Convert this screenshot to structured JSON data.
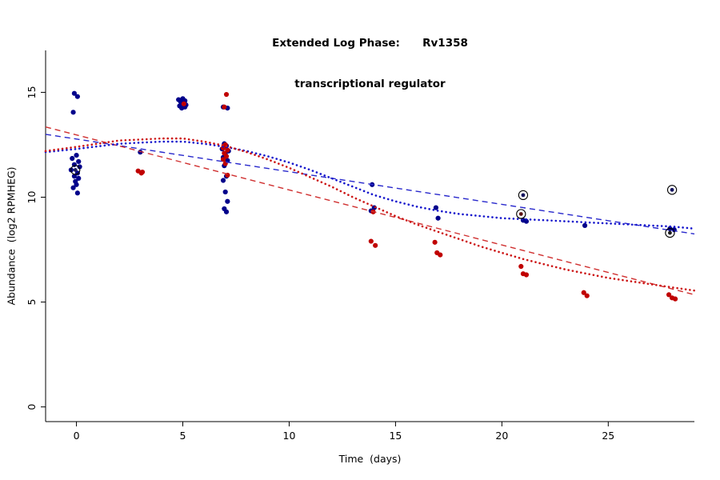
{
  "chart_data": {
    "type": "scatter",
    "title_line1": "Extended Log Phase:      Rv1358",
    "title_line2": "transcriptional regulator",
    "xlabel": "Time  (days)",
    "ylabel": "Abundance  (log2 RPMHEG)",
    "xlim": [
      -1.45,
      29.05
    ],
    "ylim": [
      -0.7,
      17.0
    ],
    "xticks": [
      0,
      5,
      10,
      15,
      20,
      25
    ],
    "yticks": [
      0,
      5,
      10,
      15
    ],
    "grid": false,
    "legend": "none",
    "series": [
      {
        "name": "blue-points",
        "color": "#00008B",
        "points": [
          [
            -0.1,
            14.95
          ],
          [
            0.05,
            14.8
          ],
          [
            -0.15,
            14.05
          ],
          [
            0.0,
            12.0
          ],
          [
            -0.2,
            11.85
          ],
          [
            0.1,
            11.7
          ],
          [
            -0.1,
            11.55
          ],
          [
            0.15,
            11.45
          ],
          [
            -0.25,
            11.3
          ],
          [
            0.05,
            11.15
          ],
          [
            -0.1,
            11.0
          ],
          [
            0.1,
            10.9
          ],
          [
            -0.05,
            10.75
          ],
          [
            0.0,
            10.6
          ],
          [
            -0.15,
            10.45
          ],
          [
            0.05,
            10.2
          ],
          [
            3.0,
            12.15
          ],
          [
            4.8,
            14.65
          ],
          [
            4.9,
            14.55
          ],
          [
            5.0,
            14.7
          ],
          [
            5.05,
            14.45
          ],
          [
            5.1,
            14.6
          ],
          [
            4.85,
            14.35
          ],
          [
            5.0,
            14.5
          ],
          [
            5.15,
            14.4
          ],
          [
            4.95,
            14.25
          ],
          [
            5.1,
            14.3
          ],
          [
            6.9,
            14.3
          ],
          [
            7.1,
            14.25
          ],
          [
            6.95,
            12.55
          ],
          [
            7.05,
            12.45
          ],
          [
            6.85,
            12.3
          ],
          [
            7.15,
            12.2
          ],
          [
            7.0,
            12.05
          ],
          [
            6.9,
            11.9
          ],
          [
            7.1,
            11.75
          ],
          [
            6.95,
            11.5
          ],
          [
            7.05,
            11.0
          ],
          [
            6.9,
            10.8
          ],
          [
            7.0,
            10.25
          ],
          [
            7.1,
            9.8
          ],
          [
            6.95,
            9.45
          ],
          [
            7.05,
            9.3
          ],
          [
            13.9,
            10.6
          ],
          [
            14.0,
            9.5
          ],
          [
            13.85,
            9.35
          ],
          [
            16.9,
            9.5
          ],
          [
            17.0,
            9.0
          ],
          [
            21.0,
            8.9
          ],
          [
            21.15,
            8.85
          ],
          [
            23.9,
            8.65
          ],
          [
            27.9,
            8.5
          ],
          [
            28.1,
            8.45
          ]
        ]
      },
      {
        "name": "red-points",
        "color": "#C00000",
        "points": [
          [
            2.9,
            11.25
          ],
          [
            3.05,
            11.15
          ],
          [
            3.1,
            11.2
          ],
          [
            5.05,
            14.45
          ],
          [
            7.05,
            14.9
          ],
          [
            6.95,
            14.3
          ],
          [
            7.0,
            12.5
          ],
          [
            6.9,
            12.35
          ],
          [
            7.1,
            12.25
          ],
          [
            6.95,
            12.1
          ],
          [
            7.05,
            11.95
          ],
          [
            6.9,
            11.8
          ],
          [
            7.0,
            11.6
          ],
          [
            7.1,
            11.05
          ],
          [
            13.95,
            9.3
          ],
          [
            13.85,
            7.9
          ],
          [
            14.05,
            7.7
          ],
          [
            16.85,
            7.85
          ],
          [
            16.95,
            7.35
          ],
          [
            17.1,
            7.25
          ],
          [
            20.9,
            6.7
          ],
          [
            21.0,
            6.35
          ],
          [
            21.15,
            6.3
          ],
          [
            23.85,
            5.45
          ],
          [
            24.0,
            5.3
          ],
          [
            27.85,
            5.35
          ],
          [
            28.0,
            5.2
          ],
          [
            28.15,
            5.15
          ]
        ]
      }
    ],
    "circled_points": [
      {
        "x": -0.05,
        "y": 11.3,
        "dot": "#1b1b5e"
      },
      {
        "x": 21.0,
        "y": 10.1,
        "dot": "#14145e"
      },
      {
        "x": 20.9,
        "y": 9.2,
        "dot": "#5e1414"
      },
      {
        "x": 28.0,
        "y": 10.35,
        "dot": "#14145e"
      },
      {
        "x": 27.9,
        "y": 8.3,
        "dot": "#1b1b1b"
      }
    ],
    "trend_lines": [
      {
        "name": "blue-long-dashed",
        "color": "#2828CC",
        "width": 1.4,
        "dash": "7 5",
        "cap": "butt",
        "points": [
          [
            -1.45,
            13.0
          ],
          [
            29.05,
            8.25
          ]
        ]
      },
      {
        "name": "red-long-dashed",
        "color": "#D03030",
        "width": 1.4,
        "dash": "7 5",
        "cap": "butt",
        "points": [
          [
            -1.45,
            13.35
          ],
          [
            29.05,
            5.35
          ]
        ]
      },
      {
        "name": "blue-dotted",
        "color": "#1414CC",
        "width": 2.6,
        "dash": "0.1 5.2",
        "cap": "round",
        "points": [
          [
            -1.45,
            12.15
          ],
          [
            0,
            12.3
          ],
          [
            2,
            12.55
          ],
          [
            4,
            12.65
          ],
          [
            5,
            12.65
          ],
          [
            6,
            12.55
          ],
          [
            7,
            12.4
          ],
          [
            8,
            12.2
          ],
          [
            9,
            11.95
          ],
          [
            10,
            11.65
          ],
          [
            11,
            11.3
          ],
          [
            12,
            10.9
          ],
          [
            13,
            10.5
          ],
          [
            14,
            10.1
          ],
          [
            15,
            9.8
          ],
          [
            16,
            9.55
          ],
          [
            17,
            9.35
          ],
          [
            18,
            9.2
          ],
          [
            19,
            9.1
          ],
          [
            20,
            9.0
          ],
          [
            21,
            8.95
          ],
          [
            22,
            8.9
          ],
          [
            23,
            8.85
          ],
          [
            24,
            8.8
          ],
          [
            25,
            8.75
          ],
          [
            26,
            8.7
          ],
          [
            27,
            8.65
          ],
          [
            28,
            8.6
          ],
          [
            29.05,
            8.5
          ]
        ]
      },
      {
        "name": "red-dotted",
        "color": "#CC1414",
        "width": 2.6,
        "dash": "0.1 5.2",
        "cap": "round",
        "points": [
          [
            -1.45,
            12.2
          ],
          [
            0,
            12.4
          ],
          [
            2,
            12.7
          ],
          [
            4,
            12.8
          ],
          [
            5,
            12.8
          ],
          [
            6,
            12.65
          ],
          [
            7,
            12.45
          ],
          [
            8,
            12.15
          ],
          [
            9,
            11.8
          ],
          [
            10,
            11.4
          ],
          [
            11,
            10.95
          ],
          [
            12,
            10.5
          ],
          [
            13,
            10.0
          ],
          [
            14,
            9.55
          ],
          [
            15,
            9.1
          ],
          [
            16,
            8.7
          ],
          [
            17,
            8.35
          ],
          [
            18,
            8.0
          ],
          [
            19,
            7.65
          ],
          [
            20,
            7.35
          ],
          [
            21,
            7.05
          ],
          [
            22,
            6.8
          ],
          [
            23,
            6.55
          ],
          [
            24,
            6.35
          ],
          [
            25,
            6.15
          ],
          [
            26,
            6.0
          ],
          [
            27,
            5.85
          ],
          [
            28,
            5.7
          ],
          [
            29.05,
            5.55
          ]
        ]
      }
    ]
  }
}
